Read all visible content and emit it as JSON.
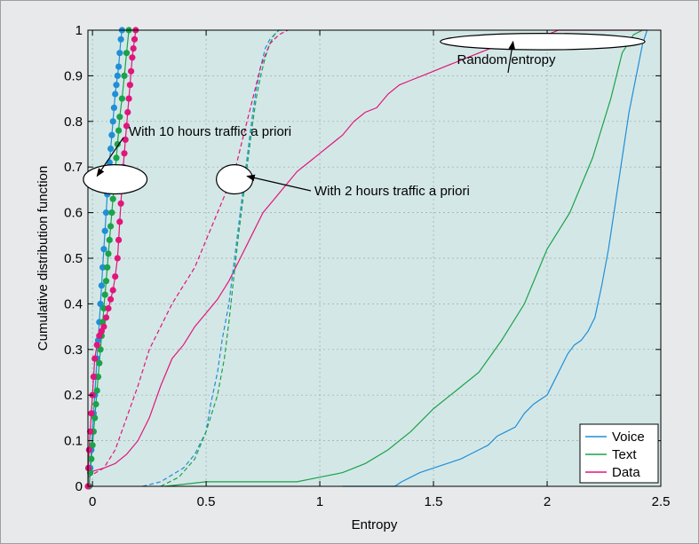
{
  "chart_data": {
    "type": "line",
    "title": "",
    "xlabel": "Entropy",
    "ylabel": "Cumulative distribution function",
    "xlim": [
      -0.02,
      2.5
    ],
    "ylim": [
      0,
      1
    ],
    "xticks": [
      "0",
      "0.5",
      "1",
      "1.5",
      "2",
      "2.5"
    ],
    "yticks": [
      "0",
      "0.1",
      "0.2",
      "0.3",
      "0.4",
      "0.5",
      "0.6",
      "0.7",
      "0.8",
      "0.9",
      "1"
    ],
    "xtick_values": [
      0,
      0.5,
      1,
      1.5,
      2,
      2.5
    ],
    "ytick_values": [
      0,
      0.1,
      0.2,
      0.3,
      0.4,
      0.5,
      0.6,
      0.7,
      0.8,
      0.9,
      1
    ],
    "grid": true,
    "legend": {
      "placement": "bottom-right",
      "entries": [
        "Voice",
        "Text",
        "Data"
      ]
    },
    "colors": {
      "voice": "#1f8fd6",
      "text": "#1aa34a",
      "data": "#e0167a",
      "plot_bg": "#d4e7e7",
      "frame_bg": "#e7e9ea"
    },
    "series": [
      {
        "name": "Voice",
        "condition": "random",
        "style": "solid",
        "color": "#1f8fd6",
        "x": [
          1.1,
          1.33,
          1.36,
          1.4,
          1.44,
          1.5,
          1.56,
          1.62,
          1.66,
          1.7,
          1.74,
          1.78,
          1.82,
          1.86,
          1.9,
          1.94,
          1.97,
          2.0,
          2.03,
          2.06,
          2.09,
          2.12,
          2.15,
          2.18,
          2.21,
          2.24,
          2.27,
          2.3,
          2.33,
          2.36,
          2.38,
          2.4,
          2.42,
          2.44
        ],
        "y": [
          0,
          0,
          0.01,
          0.02,
          0.03,
          0.04,
          0.05,
          0.06,
          0.07,
          0.08,
          0.09,
          0.11,
          0.12,
          0.13,
          0.16,
          0.18,
          0.19,
          0.2,
          0.23,
          0.26,
          0.29,
          0.31,
          0.32,
          0.34,
          0.37,
          0.44,
          0.52,
          0.62,
          0.72,
          0.82,
          0.87,
          0.92,
          0.97,
          1.0
        ]
      },
      {
        "name": "Text",
        "condition": "random",
        "style": "solid",
        "color": "#1aa34a",
        "x": [
          0.32,
          0.5,
          0.6,
          0.7,
          0.9,
          1.0,
          1.1,
          1.2,
          1.3,
          1.4,
          1.5,
          1.6,
          1.7,
          1.8,
          1.9,
          2.0,
          2.1,
          2.2,
          2.28,
          2.33,
          2.38,
          2.42
        ],
        "y": [
          0,
          0.01,
          0.01,
          0.01,
          0.01,
          0.02,
          0.03,
          0.05,
          0.08,
          0.12,
          0.17,
          0.21,
          0.25,
          0.32,
          0.4,
          0.52,
          0.6,
          0.72,
          0.85,
          0.95,
          0.99,
          1.0
        ]
      },
      {
        "name": "Data",
        "condition": "random",
        "style": "solid",
        "color": "#e0167a",
        "x": [
          -0.02,
          0.05,
          0.1,
          0.15,
          0.2,
          0.25,
          0.3,
          0.35,
          0.4,
          0.45,
          0.5,
          0.55,
          0.6,
          0.65,
          0.7,
          0.75,
          0.8,
          0.85,
          0.9,
          0.95,
          1.0,
          1.05,
          1.1,
          1.15,
          1.2,
          1.25,
          1.3,
          1.35,
          1.4,
          1.45,
          1.5,
          1.55,
          1.6,
          1.65,
          1.7,
          1.75,
          1.8,
          1.85,
          1.9,
          1.95,
          2.0,
          2.05,
          2.1,
          2.15,
          2.2,
          2.25,
          2.3,
          2.35,
          2.4,
          2.44
        ],
        "y": [
          0.03,
          0.04,
          0.05,
          0.07,
          0.1,
          0.15,
          0.22,
          0.28,
          0.31,
          0.35,
          0.38,
          0.41,
          0.45,
          0.5,
          0.55,
          0.6,
          0.63,
          0.66,
          0.69,
          0.71,
          0.73,
          0.75,
          0.77,
          0.8,
          0.82,
          0.83,
          0.86,
          0.88,
          0.89,
          0.9,
          0.91,
          0.92,
          0.93,
          0.94,
          0.95,
          0.96,
          0.96,
          0.97,
          0.98,
          0.99,
          0.99,
          1.0,
          1.0,
          1.0,
          1.0,
          1.0,
          1.0,
          1.0,
          1.0,
          1.0
        ]
      },
      {
        "name": "Voice",
        "condition": "2 hours traffic a priori",
        "style": "dashed",
        "color": "#1f8fd6",
        "x": [
          0.22,
          0.3,
          0.4,
          0.45,
          0.5,
          0.52,
          0.55,
          0.57,
          0.6,
          0.62,
          0.64,
          0.66,
          0.68,
          0.7,
          0.72,
          0.74,
          0.76,
          0.78,
          0.8,
          0.82,
          0.84
        ],
        "y": [
          0,
          0.01,
          0.04,
          0.07,
          0.12,
          0.18,
          0.25,
          0.32,
          0.4,
          0.48,
          0.56,
          0.64,
          0.72,
          0.8,
          0.87,
          0.92,
          0.96,
          0.98,
          0.99,
          1.0,
          1.0
        ]
      },
      {
        "name": "Text",
        "condition": "2 hours traffic a priori",
        "style": "dashed",
        "color": "#1aa34a",
        "x": [
          0.3,
          0.38,
          0.45,
          0.5,
          0.55,
          0.58,
          0.6,
          0.62,
          0.64,
          0.66,
          0.68,
          0.7,
          0.72,
          0.74,
          0.76,
          0.78,
          0.8,
          0.82
        ],
        "y": [
          0,
          0.02,
          0.06,
          0.12,
          0.2,
          0.28,
          0.36,
          0.45,
          0.54,
          0.62,
          0.7,
          0.78,
          0.85,
          0.9,
          0.94,
          0.97,
          0.99,
          1.0
        ]
      },
      {
        "name": "Data",
        "condition": "2 hours traffic a priori",
        "style": "dashed",
        "color": "#e0167a",
        "x": [
          -0.02,
          0.05,
          0.1,
          0.15,
          0.2,
          0.25,
          0.3,
          0.35,
          0.4,
          0.45,
          0.5,
          0.55,
          0.6,
          0.63,
          0.66,
          0.7,
          0.74,
          0.78,
          0.82,
          0.86
        ],
        "y": [
          0.02,
          0.04,
          0.08,
          0.15,
          0.22,
          0.3,
          0.35,
          0.4,
          0.44,
          0.48,
          0.54,
          0.6,
          0.66,
          0.7,
          0.76,
          0.84,
          0.92,
          0.97,
          0.99,
          1.0
        ]
      },
      {
        "name": "Voice",
        "condition": "10 hours traffic a priori",
        "style": "markers",
        "color": "#1f8fd6",
        "x": [
          -0.015,
          -0.01,
          -0.005,
          0.0,
          0.005,
          0.01,
          0.015,
          0.02,
          0.025,
          0.03,
          0.035,
          0.04,
          0.045,
          0.05,
          0.055,
          0.06,
          0.065,
          0.07,
          0.075,
          0.08,
          0.085,
          0.09,
          0.095,
          0.1,
          0.105,
          0.11,
          0.115,
          0.12,
          0.125,
          0.13
        ],
        "y": [
          0.0,
          0.04,
          0.08,
          0.12,
          0.16,
          0.2,
          0.24,
          0.28,
          0.32,
          0.36,
          0.4,
          0.44,
          0.48,
          0.52,
          0.56,
          0.6,
          0.64,
          0.68,
          0.71,
          0.74,
          0.77,
          0.8,
          0.83,
          0.86,
          0.88,
          0.9,
          0.92,
          0.95,
          0.98,
          1.0
        ]
      },
      {
        "name": "Text",
        "condition": "10 hours traffic a priori",
        "style": "markers",
        "color": "#1aa34a",
        "x": [
          -0.015,
          -0.01,
          -0.005,
          0.0,
          0.005,
          0.01,
          0.015,
          0.02,
          0.025,
          0.03,
          0.035,
          0.04,
          0.045,
          0.05,
          0.055,
          0.06,
          0.065,
          0.07,
          0.075,
          0.08,
          0.085,
          0.09,
          0.095,
          0.1,
          0.105,
          0.11,
          0.115,
          0.12,
          0.13,
          0.14,
          0.15,
          0.16
        ],
        "y": [
          0.0,
          0.03,
          0.06,
          0.09,
          0.12,
          0.15,
          0.18,
          0.21,
          0.24,
          0.27,
          0.3,
          0.33,
          0.36,
          0.39,
          0.42,
          0.45,
          0.48,
          0.51,
          0.54,
          0.57,
          0.6,
          0.63,
          0.66,
          0.69,
          0.72,
          0.75,
          0.78,
          0.81,
          0.85,
          0.9,
          0.95,
          1.0
        ]
      },
      {
        "name": "Data",
        "condition": "10 hours traffic a priori",
        "style": "markers",
        "color": "#e0167a",
        "x": [
          -0.02,
          -0.018,
          -0.015,
          -0.01,
          -0.005,
          0.0,
          0.005,
          0.01,
          0.02,
          0.03,
          0.04,
          0.05,
          0.06,
          0.07,
          0.08,
          0.09,
          0.1,
          0.11,
          0.115,
          0.12,
          0.125,
          0.13,
          0.135,
          0.14,
          0.145,
          0.15,
          0.155,
          0.16,
          0.165,
          0.17,
          0.175,
          0.18,
          0.185,
          0.19
        ],
        "y": [
          0.0,
          0.04,
          0.08,
          0.12,
          0.16,
          0.2,
          0.24,
          0.28,
          0.31,
          0.33,
          0.34,
          0.35,
          0.37,
          0.39,
          0.41,
          0.43,
          0.46,
          0.5,
          0.54,
          0.58,
          0.62,
          0.66,
          0.7,
          0.73,
          0.76,
          0.79,
          0.82,
          0.85,
          0.88,
          0.91,
          0.94,
          0.96,
          0.98,
          1.0
        ]
      }
    ],
    "annotations": [
      {
        "text": "With 10 hours traffic a priori",
        "arrow_to": [
          0.02,
          0.68
        ],
        "x": 0.15,
        "y": 0.78
      },
      {
        "text": "With 2 hours traffic a priori",
        "arrow_to": [
          0.68,
          0.68
        ],
        "x": 0.95,
        "y": 0.64
      },
      {
        "text": "Random entropy",
        "arrow_to": [
          1.85,
          0.975
        ],
        "x": 1.55,
        "y": 0.9
      }
    ],
    "ellipses": [
      {
        "cx": 0.1,
        "cy": 0.673,
        "rx": 0.14,
        "ry": 0.032
      },
      {
        "cx": 0.625,
        "cy": 0.673,
        "rx": 0.08,
        "ry": 0.032
      },
      {
        "cx": 1.98,
        "cy": 0.975,
        "rx": 0.45,
        "ry": 0.018
      }
    ]
  }
}
